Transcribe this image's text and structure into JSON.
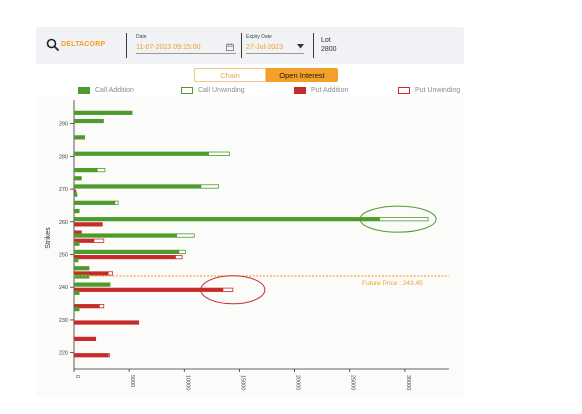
{
  "toolbar": {
    "symbol": "DELTACORP",
    "date_label": "Date",
    "date_value": "11-07-2023 09:15:00",
    "expiry_label": "Expiry Date",
    "expiry_value": "27-Jul-2023",
    "lot_label": "Lot",
    "lot_value": "2800"
  },
  "tabs": [
    {
      "label": "Chain",
      "active": false
    },
    {
      "label": "Open Interest",
      "active": true
    }
  ],
  "colors": {
    "call": "#4d9a2d",
    "put": "#c62b2b",
    "future": "#f2a02a",
    "accent": "#f0a21e"
  },
  "chart_data": {
    "type": "bar",
    "orientation": "horizontal",
    "stacked": true,
    "ylabel": "Strikes",
    "xlabel": "",
    "xlim": [
      0,
      34000
    ],
    "ylim": [
      215,
      296
    ],
    "xticks": [
      "0",
      "5000",
      "10000",
      "15000",
      "20000",
      "25000",
      "30000"
    ],
    "yticks": [
      "220",
      "230",
      "240",
      "250",
      "260",
      "270",
      "280",
      "290"
    ],
    "legend": [
      {
        "label": "Call Addition",
        "style": "call-solid"
      },
      {
        "label": "Call Unwinding",
        "style": "call-outline"
      },
      {
        "label": "Put Addition",
        "style": "put-solid"
      },
      {
        "label": "Put Unwinding",
        "style": "put-outline"
      }
    ],
    "legend_position": "top",
    "future": {
      "price": 243.45,
      "label": "Future Price : 243.45"
    },
    "strikes": [
      {
        "strike": 292.5,
        "call_add": 5300,
        "call_unw": 0,
        "put_add": 0,
        "put_unw": 0
      },
      {
        "strike": 290,
        "call_add": 2700,
        "call_unw": 0,
        "put_add": 0,
        "put_unw": 0
      },
      {
        "strike": 285,
        "call_add": 1000,
        "call_unw": 0,
        "put_add": 0,
        "put_unw": 0
      },
      {
        "strike": 280,
        "call_add": 12200,
        "call_unw": 1900,
        "put_add": 0,
        "put_unw": 0
      },
      {
        "strike": 275,
        "call_add": 2100,
        "call_unw": 700,
        "put_add": 0,
        "put_unw": 0
      },
      {
        "strike": 272.5,
        "call_add": 700,
        "call_unw": 0,
        "put_add": 0,
        "put_unw": 0
      },
      {
        "strike": 270,
        "call_add": 11500,
        "call_unw": 1600,
        "put_add": 200,
        "put_unw": 0
      },
      {
        "strike": 267.5,
        "call_add": 300,
        "call_unw": 0,
        "put_add": 0,
        "put_unw": 0
      },
      {
        "strike": 265,
        "call_add": 3700,
        "call_unw": 300,
        "put_add": 0,
        "put_unw": 0
      },
      {
        "strike": 262.5,
        "call_add": 500,
        "call_unw": 0,
        "put_add": 0,
        "put_unw": 0
      },
      {
        "strike": 260,
        "call_add": 27700,
        "call_unw": 4400,
        "put_add": 2600,
        "put_unw": 0
      },
      {
        "strike": 257.5,
        "call_add": 0,
        "call_unw": 0,
        "put_add": 700,
        "put_unw": 0
      },
      {
        "strike": 255,
        "call_add": 9300,
        "call_unw": 1600,
        "put_add": 1800,
        "put_unw": 900
      },
      {
        "strike": 252.5,
        "call_add": 500,
        "call_unw": 0,
        "put_add": 0,
        "put_unw": 0
      },
      {
        "strike": 250,
        "call_add": 9500,
        "call_unw": 600,
        "put_add": 9200,
        "put_unw": 600
      },
      {
        "strike": 247.5,
        "call_add": 400,
        "call_unw": 0,
        "put_add": 0,
        "put_unw": 0
      },
      {
        "strike": 245,
        "call_add": 1400,
        "call_unw": 0,
        "put_add": 3100,
        "put_unw": 400
      },
      {
        "strike": 242.5,
        "call_add": 1400,
        "call_unw": 0,
        "put_add": 0,
        "put_unw": 0
      },
      {
        "strike": 240,
        "call_add": 3300,
        "call_unw": 0,
        "put_add": 13500,
        "put_unw": 900
      },
      {
        "strike": 237.5,
        "call_add": 500,
        "call_unw": 0,
        "put_add": 0,
        "put_unw": 0
      },
      {
        "strike": 235,
        "call_add": 0,
        "call_unw": 0,
        "put_add": 2300,
        "put_unw": 400
      },
      {
        "strike": 232.5,
        "call_add": 500,
        "call_unw": 0,
        "put_add": 0,
        "put_unw": 0
      },
      {
        "strike": 230,
        "call_add": 0,
        "call_unw": 0,
        "put_add": 5900,
        "put_unw": 0
      },
      {
        "strike": 225,
        "call_add": 0,
        "call_unw": 0,
        "put_add": 2000,
        "put_unw": 0
      },
      {
        "strike": 220,
        "call_add": 0,
        "call_unw": 0,
        "put_add": 3100,
        "put_unw": 100
      }
    ],
    "highlights": [
      {
        "strike": 260,
        "side": "call",
        "color": "#4d9a2d"
      },
      {
        "strike": 240,
        "side": "put",
        "color": "#c62b2b"
      }
    ]
  }
}
